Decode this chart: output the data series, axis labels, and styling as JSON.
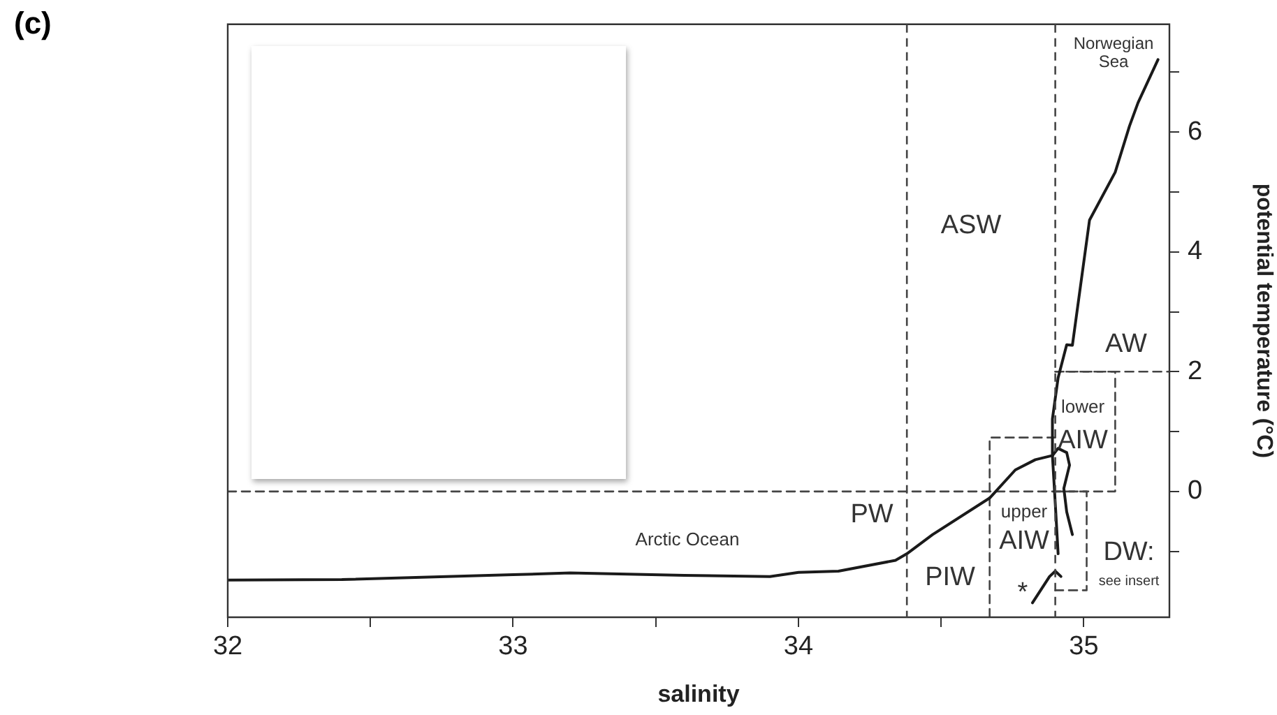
{
  "chart_data": {
    "type": "line",
    "title": "(c)",
    "xlabel": "salinity",
    "ylabel": "potential temperature (°C)",
    "xlim": [
      32,
      35.3
    ],
    "ylim": [
      -2.1,
      7.8
    ],
    "xticks": [
      32,
      {
        "value": 32.5,
        "label": null
      },
      33,
      {
        "value": 33.5,
        "label": null
      },
      34,
      {
        "value": 34.5,
        "label": null
      },
      35
    ],
    "yticks": [
      {
        "value": -1,
        "label": null
      },
      0,
      {
        "value": 1,
        "label": null
      },
      2,
      {
        "value": 3,
        "label": null
      },
      4,
      {
        "value": 5,
        "label": null
      },
      6,
      {
        "value": 7,
        "label": null
      }
    ],
    "grid": false,
    "legend": false,
    "marker": "none",
    "series": [
      {
        "color": "#1a1a1a",
        "line_style": "solid",
        "x": [
          32,
          32.4,
          33,
          33.2,
          33.6,
          33.9,
          34,
          34.14,
          34.34,
          34.38,
          34.47,
          34.67,
          34.76,
          34.83,
          34.89,
          34.89,
          34.91,
          34.94,
          34.96,
          35.02,
          35.11,
          35.16,
          35.19,
          35.26
        ],
        "values": [
          -1.48,
          -1.47,
          -1.39,
          -1.36,
          -1.4,
          -1.42,
          -1.35,
          -1.33,
          -1.15,
          -1.04,
          -0.72,
          -0.11,
          0.36,
          0.53,
          0.6,
          1.21,
          1.9,
          2.45,
          2.44,
          4.53,
          5.33,
          6.1,
          6.49,
          7.21
        ]
      },
      {
        "color": "#1a1a1a",
        "line_style": "solid",
        "x": [
          34.89,
          34.91,
          34.94,
          34.95,
          34.93,
          34.94,
          34.96
        ],
        "values": [
          0.6,
          0.72,
          0.65,
          0.44,
          0.05,
          -0.34,
          -0.72
        ]
      },
      {
        "color": "#1a1a1a",
        "line_style": "solid",
        "x": [
          34.89,
          34.9,
          34.91
        ],
        "values": [
          0.6,
          -0.2,
          -1.04
        ]
      },
      {
        "color": "#1a1a1a",
        "line_style": "solid",
        "x": [
          34.82,
          34.88,
          34.9,
          34.92
        ],
        "values": [
          -1.86,
          -1.42,
          -1.33,
          -1.42
        ]
      },
      {
        "color": "#444444",
        "line_style": "dashed",
        "x": [
          32,
          35.11,
          35.11,
          34.9
        ],
        "values": [
          0,
          0,
          2,
          2
        ]
      },
      {
        "color": "#444444",
        "line_style": "dashed",
        "x": [
          34.9,
          35.3
        ],
        "values": [
          2,
          2
        ]
      },
      {
        "color": "#444444",
        "line_style": "dashed",
        "x": [
          34.67,
          34.67,
          34.9
        ],
        "values": [
          -2.1,
          0.9,
          0.9
        ]
      },
      {
        "color": "#444444",
        "line_style": "dashed",
        "x": [
          34.9,
          35.01,
          35.01,
          34.9
        ],
        "values": [
          0,
          0,
          -1.65,
          -1.65
        ]
      }
    ],
    "ref_lines": [
      {
        "axis": "x",
        "value": 34.38,
        "color": "#444444",
        "line_style": "dashed"
      },
      {
        "axis": "x",
        "value": 34.9,
        "color": "#444444",
        "line_style": "dashed"
      }
    ],
    "annotations": [
      "Norwegian\nSea",
      "ASW",
      "AW",
      "lower",
      "AIW",
      "PW",
      "upper",
      "AIW",
      "PIW",
      "DW:",
      "see insert",
      "Arctic Ocean",
      "*"
    ]
  }
}
